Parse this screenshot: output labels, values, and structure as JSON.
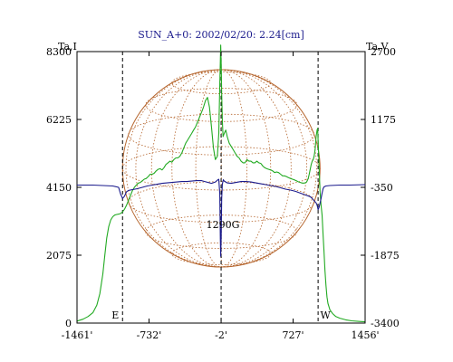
{
  "chart_data": {
    "type": "line",
    "title": "SUN_A+0: 2002/02/20: 2.24[cm]",
    "left_axis_label": "Ta,I",
    "right_axis_label": "Ta,V",
    "x_ticks": [
      "-1461'",
      "-732'",
      "-2'",
      "727'",
      "1456'"
    ],
    "x_tick_values": [
      -1461,
      -732,
      -2,
      727,
      1456
    ],
    "y_left_ticks": [
      "0",
      "2075",
      "4150",
      "6225",
      "8300"
    ],
    "y_left_tick_values": [
      0,
      2075,
      4150,
      6225,
      8300
    ],
    "y_right_ticks": [
      "-3400",
      "-1875",
      "-350",
      "1175",
      "2700"
    ],
    "y_right_tick_values": [
      -3400,
      -1875,
      -350,
      1175,
      2700
    ],
    "xlim": [
      -1461,
      1456
    ],
    "ylim_left": [
      0,
      8300
    ],
    "ylim_right": [
      -3400,
      2700
    ],
    "markers": [
      {
        "label": "E",
        "x": -1000
      },
      {
        "label": "",
        "x": -2
      },
      {
        "label": "W",
        "x": 980
      }
    ],
    "annotation": {
      "text": "1290G",
      "x": -2
    },
    "solar_disk": {
      "center_x": 0,
      "radius": 1000
    },
    "colors": {
      "stokes_i": "#22aa22",
      "stokes_v": "#1a1a8c",
      "disk": "#b5652d",
      "title": "#1a1a8c"
    },
    "series": [
      {
        "key": "stokes_i",
        "axis": "left",
        "x": [
          -1461,
          -1400,
          -1350,
          -1300,
          -1260,
          -1230,
          -1200,
          -1180,
          -1160,
          -1140,
          -1120,
          -1100,
          -1080,
          -1060,
          -1040,
          -1020,
          -1000,
          -980,
          -960,
          -940,
          -920,
          -900,
          -880,
          -860,
          -840,
          -820,
          -800,
          -780,
          -760,
          -740,
          -720,
          -700,
          -680,
          -660,
          -640,
          -620,
          -600,
          -580,
          -560,
          -540,
          -520,
          -500,
          -480,
          -460,
          -440,
          -420,
          -400,
          -380,
          -360,
          -340,
          -320,
          -300,
          -280,
          -260,
          -240,
          -220,
          -200,
          -180,
          -160,
          -140,
          -120,
          -100,
          -80,
          -60,
          -40,
          -25,
          -15,
          -10,
          -6,
          -2,
          4,
          10,
          18,
          30,
          45,
          60,
          80,
          100,
          120,
          140,
          160,
          180,
          200,
          220,
          240,
          260,
          280,
          300,
          320,
          340,
          360,
          380,
          400,
          420,
          440,
          460,
          480,
          500,
          520,
          540,
          560,
          580,
          600,
          620,
          640,
          660,
          680,
          700,
          720,
          740,
          760,
          780,
          800,
          820,
          840,
          860,
          870,
          880,
          890,
          900,
          910,
          920,
          930,
          940,
          950,
          960,
          970,
          975,
          980,
          990,
          1000,
          1010,
          1020,
          1030,
          1040,
          1050,
          1060,
          1070,
          1080,
          1100,
          1130,
          1160,
          1200,
          1260,
          1320,
          1400,
          1456
        ],
        "values": [
          60,
          120,
          200,
          320,
          550,
          900,
          1500,
          2050,
          2600,
          2950,
          3150,
          3250,
          3300,
          3320,
          3330,
          3350,
          3400,
          3480,
          3600,
          3750,
          3900,
          4050,
          4150,
          4220,
          4280,
          4300,
          4350,
          4400,
          4420,
          4480,
          4550,
          4550,
          4580,
          4650,
          4700,
          4720,
          4680,
          4750,
          4850,
          4900,
          4950,
          4920,
          5000,
          5050,
          5050,
          5100,
          5200,
          5350,
          5500,
          5600,
          5700,
          5800,
          5900,
          6000,
          6150,
          6300,
          6450,
          6600,
          6800,
          6900,
          6600,
          6000,
          5350,
          5000,
          5100,
          5800,
          7300,
          8000,
          8500,
          8000,
          7000,
          6200,
          5700,
          5800,
          5900,
          5700,
          5500,
          5400,
          5300,
          5200,
          5100,
          5050,
          4950,
          4900,
          4900,
          5000,
          4950,
          4950,
          4900,
          4900,
          4950,
          4900,
          4880,
          4800,
          4750,
          4720,
          4700,
          4680,
          4650,
          4600,
          4620,
          4600,
          4550,
          4500,
          4500,
          4480,
          4450,
          4420,
          4400,
          4380,
          4350,
          4320,
          4300,
          4280,
          4280,
          4300,
          4350,
          4420,
          4550,
          4700,
          4850,
          4950,
          5000,
          5100,
          5300,
          5700,
          5900,
          5950,
          5600,
          4800,
          4000,
          3600,
          3300,
          2700,
          2200,
          1600,
          1150,
          800,
          600,
          400,
          280,
          200,
          150,
          100,
          70,
          50,
          40
        ]
      },
      {
        "key": "stokes_v",
        "axis": "right",
        "x": [
          -1461,
          -1300,
          -1100,
          -1040,
          -1020,
          -1000,
          -980,
          -960,
          -940,
          -900,
          -850,
          -800,
          -750,
          -700,
          -650,
          -600,
          -550,
          -500,
          -450,
          -400,
          -350,
          -300,
          -250,
          -200,
          -150,
          -100,
          -60,
          -40,
          -25,
          -15,
          -10,
          -6,
          -2,
          4,
          10,
          20,
          30,
          45,
          60,
          100,
          150,
          200,
          250,
          300,
          350,
          400,
          450,
          500,
          550,
          600,
          650,
          700,
          750,
          800,
          850,
          900,
          920,
          940,
          960,
          970,
          975,
          980,
          990,
          1000,
          1010,
          1020,
          1030,
          1040,
          1060,
          1100,
          1200,
          1300,
          1456
        ],
        "values": [
          -300,
          -300,
          -320,
          -350,
          -500,
          -600,
          -550,
          -450,
          -420,
          -400,
          -380,
          -350,
          -320,
          -300,
          -280,
          -260,
          -250,
          -240,
          -230,
          -220,
          -220,
          -210,
          -200,
          -200,
          -230,
          -260,
          -230,
          -190,
          -170,
          -500,
          -1500,
          -1900,
          -1500,
          -600,
          -280,
          -180,
          -210,
          -230,
          -250,
          -260,
          -240,
          -220,
          -220,
          -230,
          -250,
          -270,
          -290,
          -310,
          -330,
          -360,
          -390,
          -410,
          -440,
          -480,
          -520,
          -560,
          -600,
          -650,
          -700,
          -750,
          -800,
          -850,
          -800,
          -700,
          -600,
          -480,
          -380,
          -340,
          -320,
          -310,
          -300,
          -300,
          -290
        ]
      }
    ]
  }
}
